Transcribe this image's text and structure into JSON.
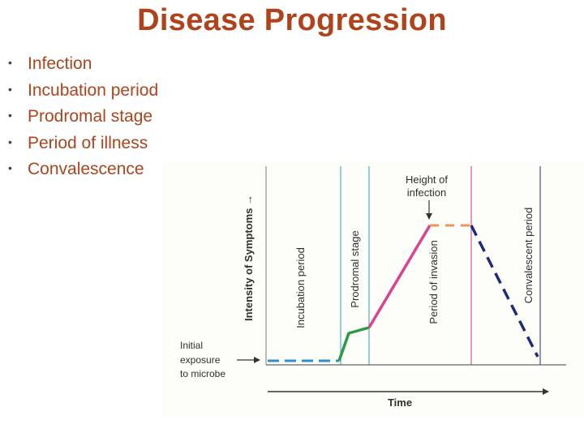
{
  "title": "Disease Progression",
  "bullets": [
    "Infection",
    "Incubation period",
    "Prodromal stage",
    "Period of illness",
    "Convalescence"
  ],
  "diagram": {
    "y_axis_label": "Intensity of Symptoms →",
    "x_axis_label": "Time",
    "initial_label": [
      "Initial",
      "exposure",
      "to microbe"
    ],
    "peak_label": [
      "Height of",
      "infection"
    ],
    "phases": [
      "Incubation period",
      "Prodromal stage",
      "Period of invasion",
      "Convalescent period"
    ],
    "colors": {
      "title_text": "#b0431c",
      "incubation_line": "#2f8fcf",
      "prodromal_line": "#2c9a48",
      "invasion_line": "#e0418f",
      "peak_line": "#f0955a",
      "convalescent_line": "#1e2a7a",
      "divider_teal": "#4fb2c2",
      "divider_magenta": "#d9569a",
      "divider_navy": "#4b4f9a"
    }
  }
}
